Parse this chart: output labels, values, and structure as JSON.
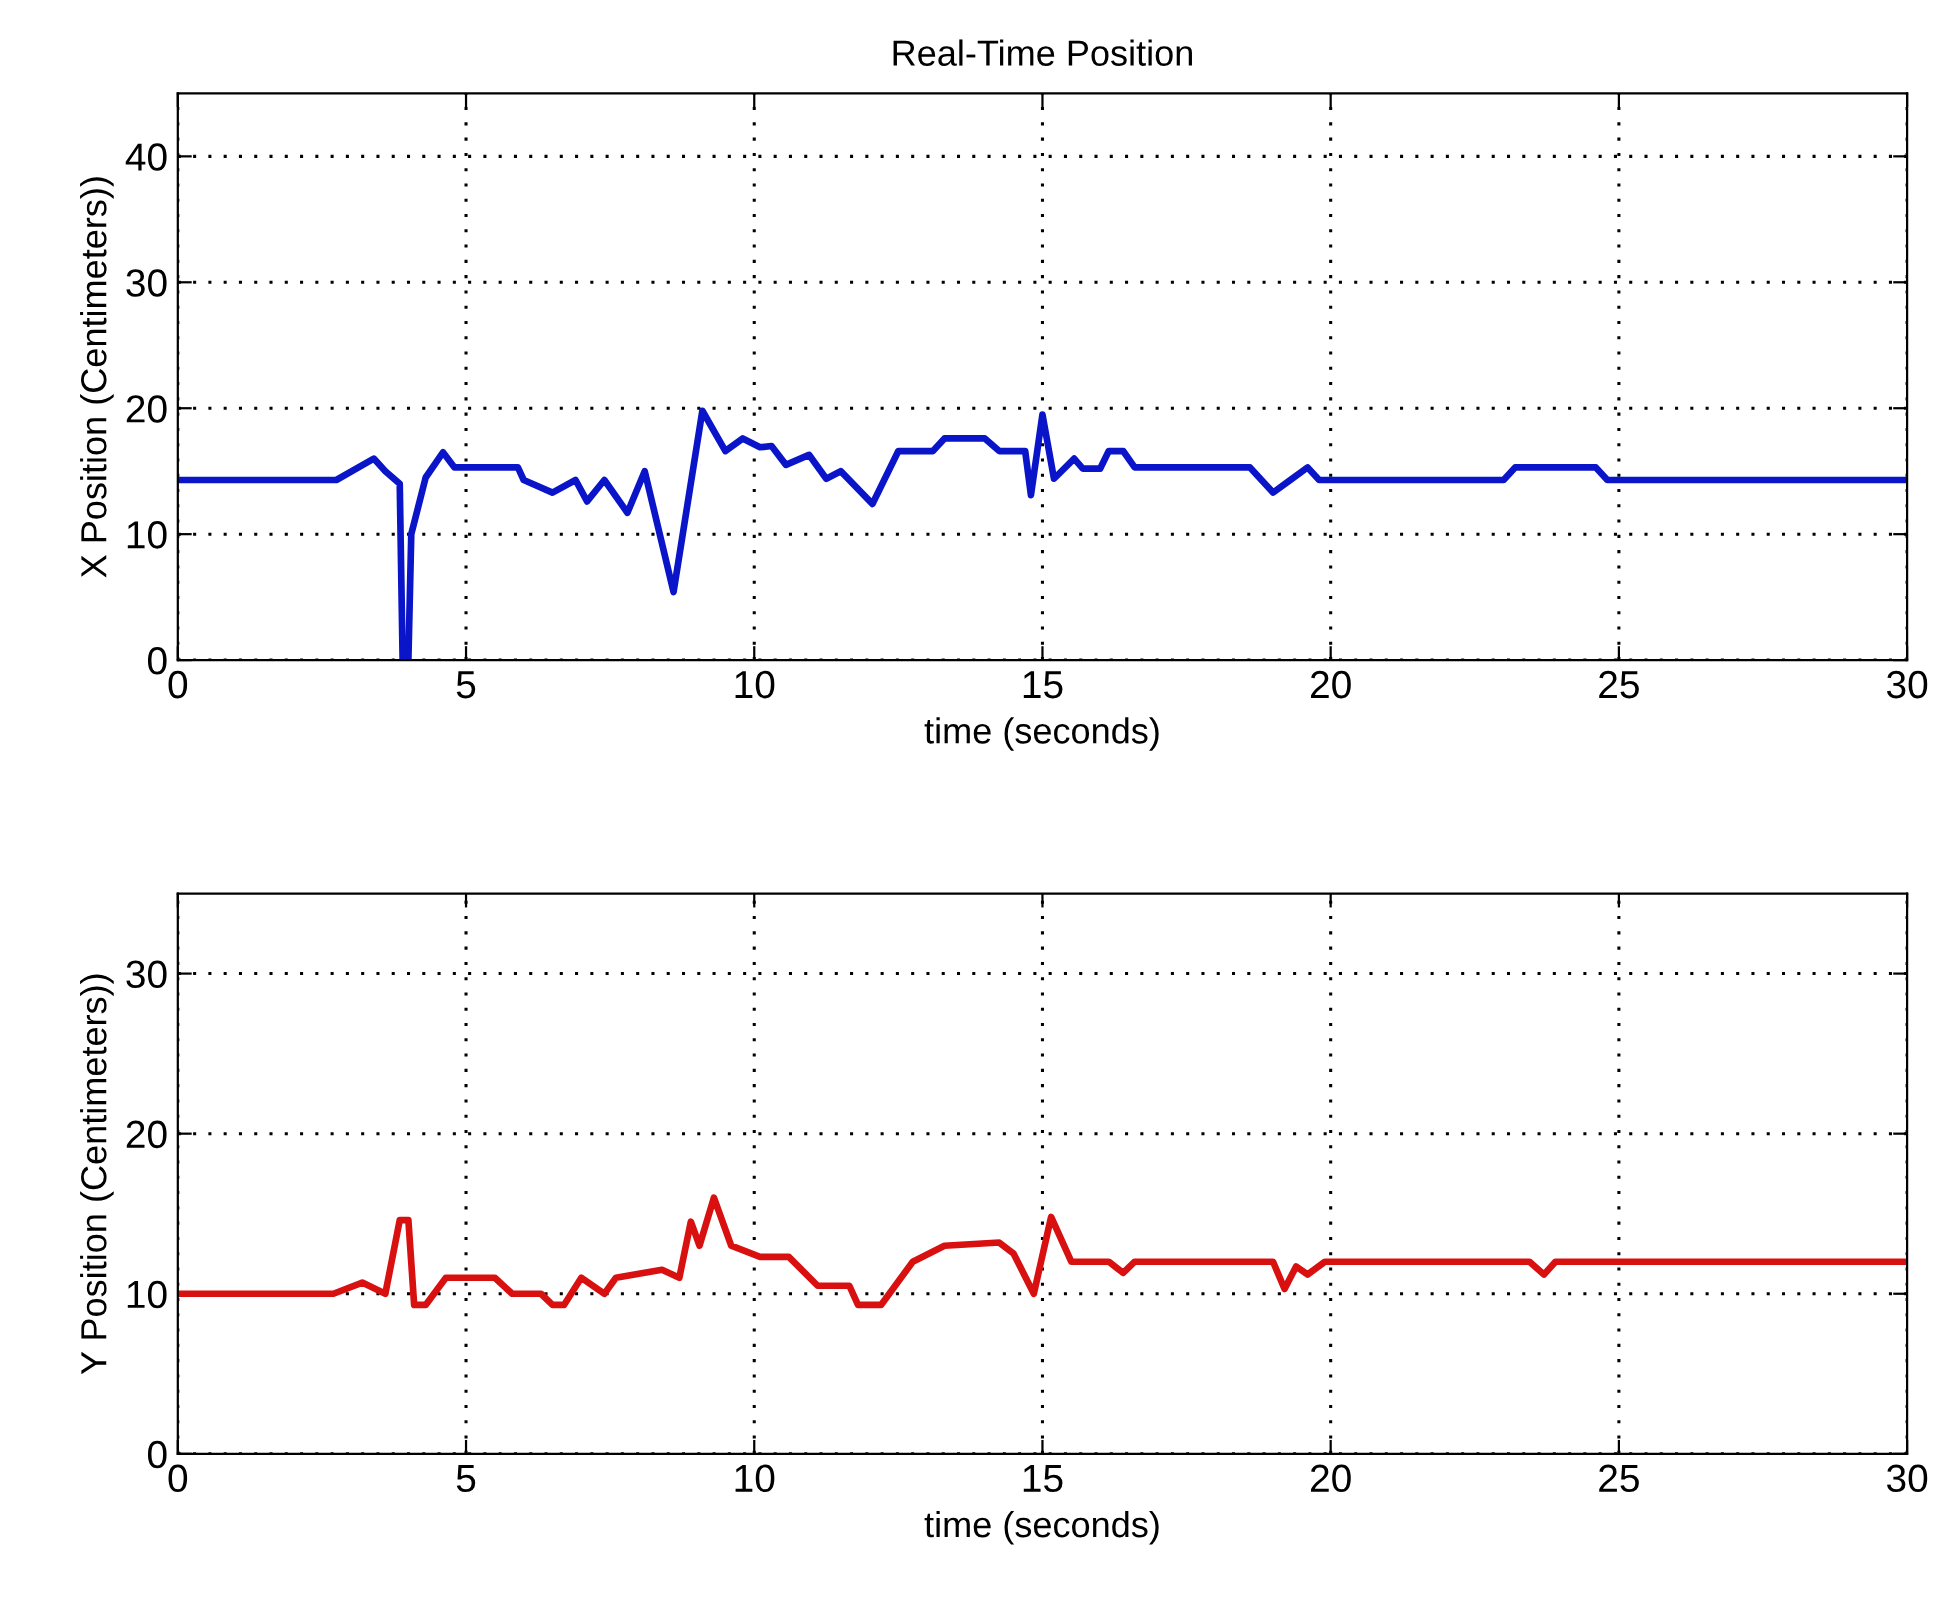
{
  "chart_data": [
    {
      "type": "line",
      "title": "Real-Time Position",
      "xlabel": "time (seconds)",
      "ylabel": "X Position (Centimeters))",
      "xlim": [
        0,
        30
      ],
      "xticks": [
        0,
        5,
        10,
        15,
        20,
        25,
        30
      ],
      "ylim": [
        0,
        45
      ],
      "yticks": [
        0,
        10,
        20,
        30,
        40
      ],
      "grid": true,
      "line_style": "solid",
      "series": [
        {
          "color": "#0a14c8",
          "x": [
            0,
            2.75,
            3.4,
            3.6,
            3.85,
            3.9,
            4.0,
            4.05,
            4.3,
            4.6,
            4.8,
            5.9,
            6.0,
            6.5,
            6.9,
            7.1,
            7.4,
            7.8,
            8.1,
            8.6,
            9.1,
            9.5,
            9.8,
            10.1,
            10.3,
            10.55,
            10.95,
            11.25,
            11.5,
            12.05,
            12.5,
            13.1,
            13.3,
            14.0,
            14.25,
            14.7,
            14.8,
            15.0,
            15.2,
            15.55,
            15.7,
            16.0,
            16.15,
            16.4,
            16.6,
            18.6,
            19.0,
            19.3,
            19.6,
            19.8,
            23.0,
            23.2,
            24.6,
            24.8,
            29.95
          ],
          "values": [
            14.3,
            14.3,
            16,
            15,
            14,
            0,
            0,
            10,
            14.5,
            16.5,
            15.3,
            15.3,
            14.3,
            13.3,
            14.3,
            12.6,
            14.3,
            11.7,
            15,
            5.4,
            19.8,
            16.6,
            17.6,
            16.9,
            17,
            15.5,
            16.3,
            14.4,
            15,
            12.4,
            16.6,
            16.6,
            17.6,
            17.6,
            16.6,
            16.6,
            13.1,
            19.5,
            14.4,
            16,
            15.2,
            15.2,
            16.6,
            16.6,
            15.3,
            15.3,
            13.3,
            14.3,
            15.3,
            14.3,
            14.3,
            15.3,
            15.3,
            14.3,
            14.3
          ]
        }
      ]
    },
    {
      "type": "line",
      "xlabel": "time (seconds)",
      "ylabel": "Y Position (Centimeters))",
      "xlim": [
        0,
        30
      ],
      "xticks": [
        0,
        5,
        10,
        15,
        20,
        25,
        30
      ],
      "ylim": [
        0,
        35
      ],
      "yticks": [
        0,
        10,
        20,
        30
      ],
      "grid": true,
      "line_style": "solid",
      "series": [
        {
          "color": "#d81010",
          "x": [
            0,
            2.7,
            3.2,
            3.6,
            3.85,
            4.0,
            4.1,
            4.3,
            4.65,
            5.5,
            5.8,
            6.3,
            6.5,
            6.7,
            7.0,
            7.4,
            7.6,
            8.4,
            8.7,
            8.9,
            9.05,
            9.3,
            9.6,
            10.1,
            10.6,
            11.1,
            11.65,
            11.8,
            12.2,
            12.75,
            13.3,
            14.25,
            14.5,
            14.85,
            15.15,
            15.5,
            16.15,
            16.4,
            16.6,
            19.0,
            19.2,
            19.4,
            19.6,
            19.9,
            23.45,
            23.7,
            23.9,
            29.95
          ],
          "values": [
            10,
            10,
            10.7,
            10,
            14.6,
            14.6,
            9.3,
            9.3,
            11,
            11,
            10,
            10,
            9.3,
            9.3,
            11,
            10,
            11,
            11.5,
            11,
            14.5,
            13,
            16,
            13,
            12.3,
            12.3,
            10.5,
            10.5,
            9.3,
            9.3,
            12,
            13,
            13.2,
            12.5,
            10,
            14.8,
            12,
            12,
            11.3,
            12,
            12,
            10.3,
            11.7,
            11.2,
            12,
            12,
            11.2,
            12,
            12
          ]
        }
      ]
    }
  ]
}
